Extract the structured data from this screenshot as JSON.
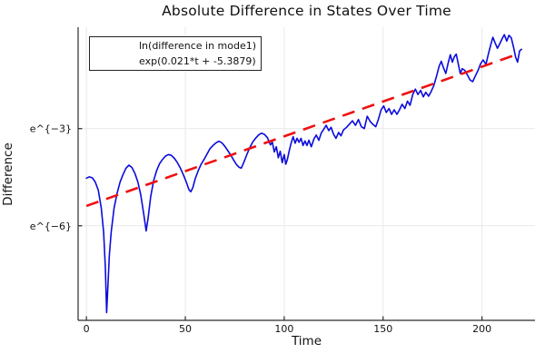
{
  "title": "Absolute Difference in States Over Time",
  "colors": {
    "series_line": "#0b0bdd",
    "fit_line": "#ee1111",
    "grid": "#e9e9e9",
    "spine": "#2b2b2b",
    "background": "#ffffff",
    "text": "#111111"
  },
  "legend": {
    "entries": [
      {
        "label": "ln(difference in mode1)",
        "style": "solid",
        "color": "#0b0bdd"
      },
      {
        "label": "exp(0.021*t + -5.3879)",
        "style": "dashed",
        "color": "#ee1111"
      }
    ]
  },
  "chart_data": {
    "type": "line",
    "title": "Absolute Difference in States Over Time",
    "xlabel": "Time",
    "ylabel": "Difference",
    "yscale": "log-e",
    "grid": true,
    "legend_position": "top-left",
    "xlim": [
      -4.2,
      226.8
    ],
    "ylim_ln": [
      -8.92,
      0.13
    ],
    "xticks": {
      "values": [
        0,
        50,
        100,
        150,
        200
      ],
      "labels": [
        "0",
        "50",
        "100",
        "150",
        "200"
      ]
    },
    "yticks": {
      "values": [
        -3,
        -6
      ],
      "labels": [
        "e^{−3}",
        "e^{−6}"
      ]
    },
    "series": [
      {
        "name": "ln(difference in mode1)",
        "style": "solid",
        "points": [
          [
            0,
            -4.53
          ],
          [
            1.5,
            -4.49
          ],
          [
            3,
            -4.52
          ],
          [
            4.5,
            -4.65
          ],
          [
            6,
            -4.9
          ],
          [
            7.5,
            -5.45
          ],
          [
            8.7,
            -6.2
          ],
          [
            9.6,
            -7.3
          ],
          [
            10.2,
            -8.68
          ],
          [
            10.9,
            -7.8
          ],
          [
            11.6,
            -6.9
          ],
          [
            12.5,
            -6.2
          ],
          [
            14,
            -5.45
          ],
          [
            15.5,
            -5.0
          ],
          [
            17,
            -4.65
          ],
          [
            18.5,
            -4.42
          ],
          [
            20,
            -4.22
          ],
          [
            21.5,
            -4.13
          ],
          [
            23,
            -4.2
          ],
          [
            24.5,
            -4.38
          ],
          [
            26,
            -4.65
          ],
          [
            27.5,
            -5.05
          ],
          [
            29,
            -5.65
          ],
          [
            30.2,
            -6.16
          ],
          [
            31.2,
            -5.75
          ],
          [
            32.5,
            -5.1
          ],
          [
            34,
            -4.6
          ],
          [
            35.5,
            -4.3
          ],
          [
            37,
            -4.08
          ],
          [
            38.5,
            -3.95
          ],
          [
            40,
            -3.85
          ],
          [
            41.5,
            -3.8
          ],
          [
            43,
            -3.83
          ],
          [
            44.5,
            -3.92
          ],
          [
            46,
            -4.05
          ],
          [
            47.5,
            -4.22
          ],
          [
            49,
            -4.42
          ],
          [
            50.5,
            -4.65
          ],
          [
            51.8,
            -4.88
          ],
          [
            52.8,
            -4.95
          ],
          [
            53.8,
            -4.82
          ],
          [
            55,
            -4.55
          ],
          [
            56.5,
            -4.3
          ],
          [
            58,
            -4.1
          ],
          [
            59.5,
            -3.95
          ],
          [
            61,
            -3.78
          ],
          [
            62.5,
            -3.62
          ],
          [
            64,
            -3.52
          ],
          [
            65.5,
            -3.44
          ],
          [
            67,
            -3.39
          ],
          [
            68.5,
            -3.44
          ],
          [
            70,
            -3.55
          ],
          [
            71.5,
            -3.68
          ],
          [
            73,
            -3.82
          ],
          [
            74.5,
            -3.98
          ],
          [
            76,
            -4.12
          ],
          [
            77.3,
            -4.2
          ],
          [
            78.3,
            -4.22
          ],
          [
            79.5,
            -4.05
          ],
          [
            81,
            -3.82
          ],
          [
            82.5,
            -3.6
          ],
          [
            84,
            -3.42
          ],
          [
            85.5,
            -3.3
          ],
          [
            87,
            -3.2
          ],
          [
            88.5,
            -3.14
          ],
          [
            90,
            -3.18
          ],
          [
            91.5,
            -3.28
          ],
          [
            93,
            -3.5
          ],
          [
            94,
            -3.42
          ],
          [
            95,
            -3.72
          ],
          [
            96,
            -3.56
          ],
          [
            97,
            -3.9
          ],
          [
            98,
            -3.7
          ],
          [
            99,
            -4.05
          ],
          [
            100,
            -3.8
          ],
          [
            100.8,
            -4.1
          ],
          [
            101.6,
            -3.95
          ],
          [
            102.5,
            -3.7
          ],
          [
            103.5,
            -3.45
          ],
          [
            104.5,
            -3.25
          ],
          [
            105.5,
            -3.45
          ],
          [
            106.5,
            -3.3
          ],
          [
            107.5,
            -3.42
          ],
          [
            108.5,
            -3.3
          ],
          [
            109.5,
            -3.52
          ],
          [
            110.5,
            -3.38
          ],
          [
            111.5,
            -3.52
          ],
          [
            112.5,
            -3.36
          ],
          [
            113.7,
            -3.56
          ],
          [
            115,
            -3.32
          ],
          [
            116.2,
            -3.2
          ],
          [
            117.5,
            -3.36
          ],
          [
            118.7,
            -3.14
          ],
          [
            120,
            -3.02
          ],
          [
            121.2,
            -2.9
          ],
          [
            122.5,
            -3.06
          ],
          [
            123.7,
            -2.96
          ],
          [
            125,
            -3.18
          ],
          [
            126.2,
            -3.3
          ],
          [
            127.5,
            -3.12
          ],
          [
            128.7,
            -3.22
          ],
          [
            130,
            -3.04
          ],
          [
            131.5,
            -2.96
          ],
          [
            133,
            -2.86
          ],
          [
            134.5,
            -2.76
          ],
          [
            136,
            -2.9
          ],
          [
            137.5,
            -2.72
          ],
          [
            139,
            -2.94
          ],
          [
            140.5,
            -3.0
          ],
          [
            142,
            -2.62
          ],
          [
            143.5,
            -2.78
          ],
          [
            145,
            -2.88
          ],
          [
            146.3,
            -2.94
          ],
          [
            147.6,
            -2.72
          ],
          [
            149,
            -2.42
          ],
          [
            150.3,
            -2.3
          ],
          [
            151.6,
            -2.5
          ],
          [
            153,
            -2.38
          ],
          [
            154.3,
            -2.56
          ],
          [
            155.6,
            -2.42
          ],
          [
            157,
            -2.56
          ],
          [
            158.3,
            -2.42
          ],
          [
            159.6,
            -2.25
          ],
          [
            161,
            -2.38
          ],
          [
            162.3,
            -2.15
          ],
          [
            163.6,
            -2.28
          ],
          [
            165,
            -1.95
          ],
          [
            166.3,
            -1.78
          ],
          [
            167.6,
            -1.95
          ],
          [
            169,
            -1.82
          ],
          [
            170.3,
            -2.02
          ],
          [
            171.6,
            -1.88
          ],
          [
            173,
            -2.0
          ],
          [
            174.3,
            -1.85
          ],
          [
            175.6,
            -1.68
          ],
          [
            177,
            -1.38
          ],
          [
            178.3,
            -1.08
          ],
          [
            179.4,
            -0.92
          ],
          [
            180.5,
            -1.12
          ],
          [
            181.7,
            -1.3
          ],
          [
            183,
            -0.95
          ],
          [
            184,
            -0.72
          ],
          [
            185,
            -0.95
          ],
          [
            186,
            -0.78
          ],
          [
            187,
            -0.7
          ],
          [
            188,
            -1.0
          ],
          [
            189,
            -1.3
          ],
          [
            190,
            -1.15
          ],
          [
            191.3,
            -1.2
          ],
          [
            192.6,
            -1.34
          ],
          [
            194,
            -1.5
          ],
          [
            195.3,
            -1.55
          ],
          [
            196.6,
            -1.38
          ],
          [
            198,
            -1.2
          ],
          [
            199.3,
            -1.0
          ],
          [
            200.6,
            -0.88
          ],
          [
            202,
            -1.02
          ],
          [
            203.3,
            -0.68
          ],
          [
            204.5,
            -0.4
          ],
          [
            205.5,
            -0.18
          ],
          [
            206.6,
            -0.35
          ],
          [
            207.8,
            -0.52
          ],
          [
            209,
            -0.38
          ],
          [
            210.2,
            -0.22
          ],
          [
            211.3,
            -0.1
          ],
          [
            212.5,
            -0.3
          ],
          [
            213.6,
            -0.12
          ],
          [
            214.8,
            -0.2
          ],
          [
            216,
            -0.5
          ],
          [
            217,
            -0.8
          ],
          [
            218,
            -0.95
          ],
          [
            219,
            -0.6
          ],
          [
            220,
            -0.55
          ]
        ]
      },
      {
        "name": "exp(0.021*t + -5.3879)",
        "style": "dashed",
        "fit": {
          "slope": 0.0215,
          "intercept": -5.3879,
          "t_range": [
            0,
            219
          ]
        }
      }
    ]
  }
}
